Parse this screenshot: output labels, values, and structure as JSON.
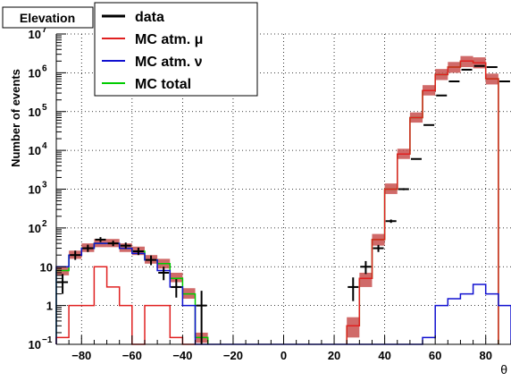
{
  "chart_data": {
    "type": "histogram",
    "title": "Elevation",
    "xlabel": "θ",
    "ylabel": "Number of events",
    "xlim": [
      -90,
      90
    ],
    "ylim": [
      0.1,
      10000000
    ],
    "yscale": "log",
    "grid": true,
    "legend_position": "top-left",
    "bin_edges": [
      -90,
      -85,
      -80,
      -75,
      -70,
      -65,
      -60,
      -55,
      -50,
      -45,
      -40,
      -35,
      -30,
      -25,
      -20,
      -15,
      -10,
      -5,
      0,
      5,
      10,
      15,
      20,
      25,
      30,
      35,
      40,
      45,
      50,
      55,
      60,
      65,
      70,
      75,
      80,
      85,
      90
    ],
    "x_ticks": [
      -80,
      -60,
      -40,
      -20,
      0,
      20,
      40,
      60,
      80
    ],
    "x_tick_labels": [
      "−80",
      "−60",
      "−40",
      "−20",
      "0",
      "20",
      "40",
      "60",
      "80"
    ],
    "y_ticks": [
      {
        "value": 0.1,
        "base": "10",
        "exp": "−1"
      },
      {
        "value": 1,
        "base": "1",
        "exp": ""
      },
      {
        "value": 10,
        "base": "10",
        "exp": ""
      },
      {
        "value": 100,
        "base": "10",
        "exp": "2"
      },
      {
        "value": 1000,
        "base": "10",
        "exp": "3"
      },
      {
        "value": 10000,
        "base": "10",
        "exp": "4"
      },
      {
        "value": 100000,
        "base": "10",
        "exp": "5"
      },
      {
        "value": 1000000,
        "base": "10",
        "exp": "6"
      },
      {
        "value": 10000000,
        "base": "10",
        "exp": "7"
      }
    ],
    "series": [
      {
        "name": "MC total",
        "color": "#00cc00",
        "band_color": "#c8504f",
        "render": "step_band",
        "values": [
          8,
          20,
          30,
          40,
          40,
          30,
          25,
          15,
          12,
          5,
          2,
          0.15,
          0,
          0,
          0,
          0,
          0,
          0,
          0,
          0,
          0,
          0,
          0,
          0.3,
          5,
          50,
          1000,
          8000,
          70000,
          350000,
          900000,
          1400000,
          2000000,
          1800000,
          700000,
          0
        ],
        "band_low": [
          6,
          16,
          24,
          32,
          32,
          24,
          20,
          12,
          9,
          4,
          1.5,
          0.11,
          0,
          0,
          0,
          0,
          0,
          0,
          0,
          0,
          0,
          0,
          0,
          0.15,
          3,
          35,
          750,
          6000,
          52000,
          260000,
          650000,
          1000000,
          1400000,
          1300000,
          500000,
          0
        ],
        "band_high": [
          10,
          26,
          40,
          52,
          52,
          40,
          33,
          20,
          16,
          7,
          2.8,
          0.2,
          0,
          0,
          0,
          0,
          0,
          0,
          0,
          0,
          0,
          0,
          0,
          0.5,
          7,
          70,
          1400,
          11000,
          95000,
          480000,
          1250000,
          1900000,
          2700000,
          2500000,
          950000,
          0
        ]
      },
      {
        "name": "MC atm. μ",
        "color": "#e02020",
        "render": "step",
        "values": [
          0.15,
          1,
          1,
          10,
          3,
          1,
          0.1,
          1,
          1,
          0.15,
          0.1,
          0,
          0,
          0,
          0,
          0,
          0,
          0,
          0,
          0,
          0,
          0,
          0,
          0.3,
          5,
          50,
          1000,
          8000,
          70000,
          350000,
          900000,
          1400000,
          2000000,
          1800000,
          700000,
          0
        ]
      },
      {
        "name": "MC atm. ν",
        "color": "#1010d0",
        "render": "step",
        "values": [
          10,
          20,
          30,
          40,
          40,
          30,
          22,
          15,
          8,
          3,
          1,
          0.1,
          0.1,
          0.1,
          0.1,
          0.1,
          0.1,
          0.1,
          0.1,
          0.1,
          0.1,
          0.1,
          0.1,
          0.1,
          0.1,
          0.1,
          0.1,
          0.1,
          0.1,
          0.15,
          1,
          1.5,
          2,
          3.5,
          2,
          1
        ]
      },
      {
        "name": "data",
        "color": "#000000",
        "render": "errorbar",
        "x": [
          -87.5,
          -82.5,
          -77.5,
          -72.5,
          -67.5,
          -62.5,
          -57.5,
          -52.5,
          -47.5,
          -42.5,
          -32.5,
          27.5,
          32.5,
          37.5,
          42.5,
          47.5,
          52.5,
          57.5,
          62.5,
          67.5,
          72.5,
          77.5,
          82.5,
          87.5
        ],
        "y": [
          4,
          20,
          30,
          50,
          40,
          35,
          25,
          15,
          7,
          3,
          1,
          3,
          10,
          30,
          150,
          1000,
          6000,
          45000,
          260000,
          600000,
          1200000,
          1500000,
          1400000,
          600000
        ],
        "y_low": [
          2,
          15,
          24,
          43,
          34,
          29,
          20,
          11,
          4.5,
          1.6,
          0.1,
          1.3,
          6.5,
          24,
          135,
          940,
          5800,
          44000,
          259000,
          599000,
          1199000,
          1499000,
          1399000,
          599000
        ],
        "y_high": [
          6.5,
          26,
          37,
          58,
          47,
          42,
          31,
          19.5,
          10,
          4.8,
          2.4,
          5.3,
          14,
          36.5,
          165,
          1060,
          6200,
          46000,
          261000,
          601000,
          1201000,
          1501000,
          1401000,
          601000
        ]
      }
    ],
    "legend_order": [
      "data",
      "MC atm. μ",
      "MC atm. ν",
      "MC total"
    ]
  }
}
